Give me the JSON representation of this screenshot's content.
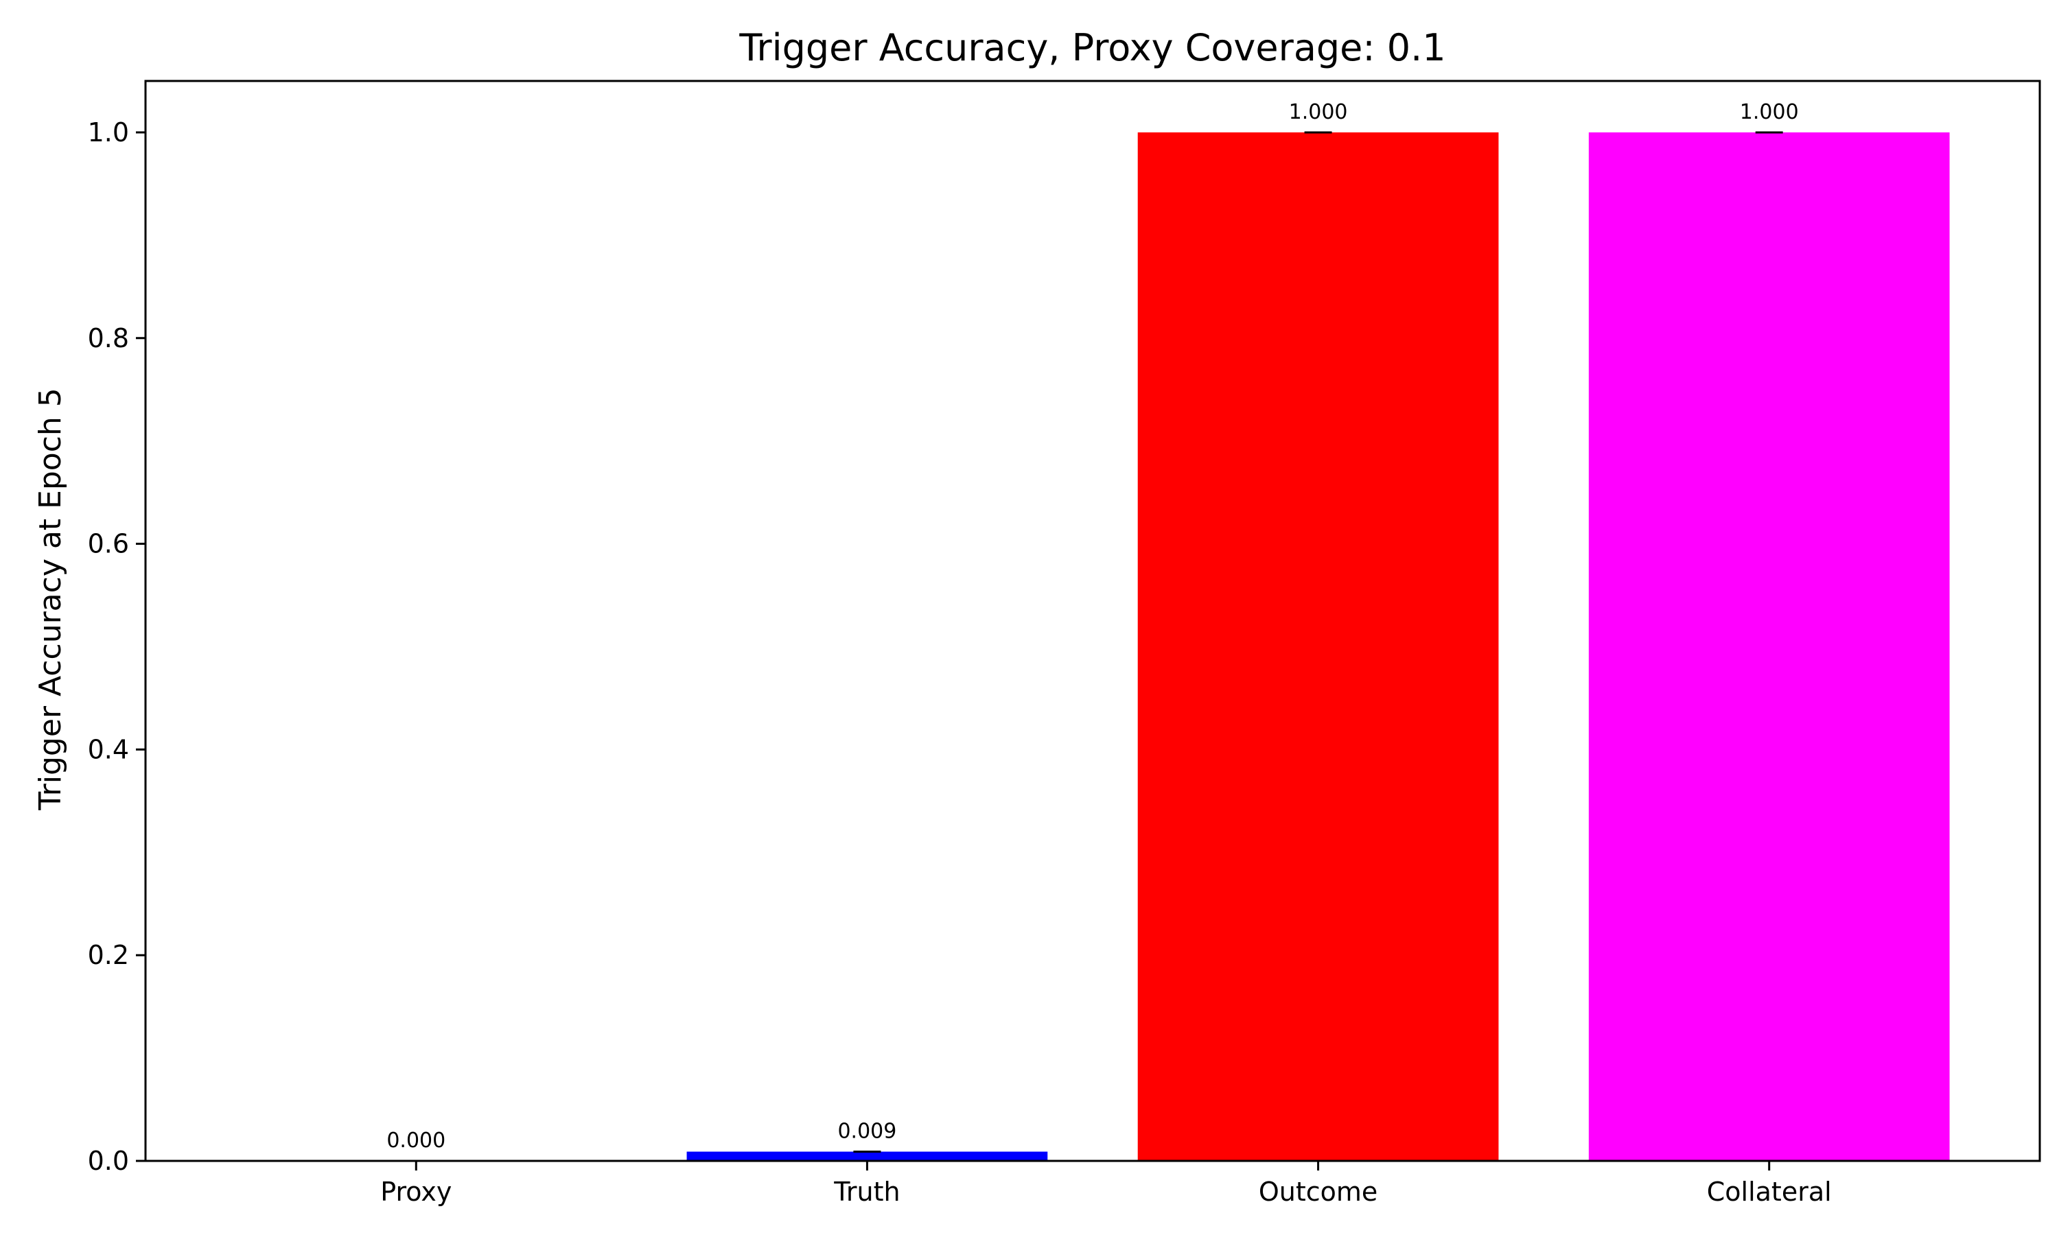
{
  "chart_data": {
    "type": "bar",
    "title": "Trigger Accuracy, Proxy Coverage: 0.1",
    "xlabel": "",
    "ylabel": "Trigger Accuracy at Epoch 5",
    "categories": [
      "Proxy",
      "Truth",
      "Outcome",
      "Collateral"
    ],
    "values": [
      0.0,
      0.009,
      1.0,
      1.0
    ],
    "value_labels": [
      "0.000",
      "0.009",
      "1.000",
      "1.000"
    ],
    "colors": [
      "#0000ff",
      "#0000ff",
      "#ff0000",
      "#ff00ff"
    ],
    "error_bars": true,
    "ylim": [
      0,
      1.05
    ],
    "yticks": [
      0.0,
      0.2,
      0.4,
      0.6,
      0.8,
      1.0
    ],
    "ytick_labels": [
      "0.0",
      "0.2",
      "0.4",
      "0.6",
      "0.8",
      "1.0"
    ],
    "grid": false,
    "legend": "none"
  }
}
